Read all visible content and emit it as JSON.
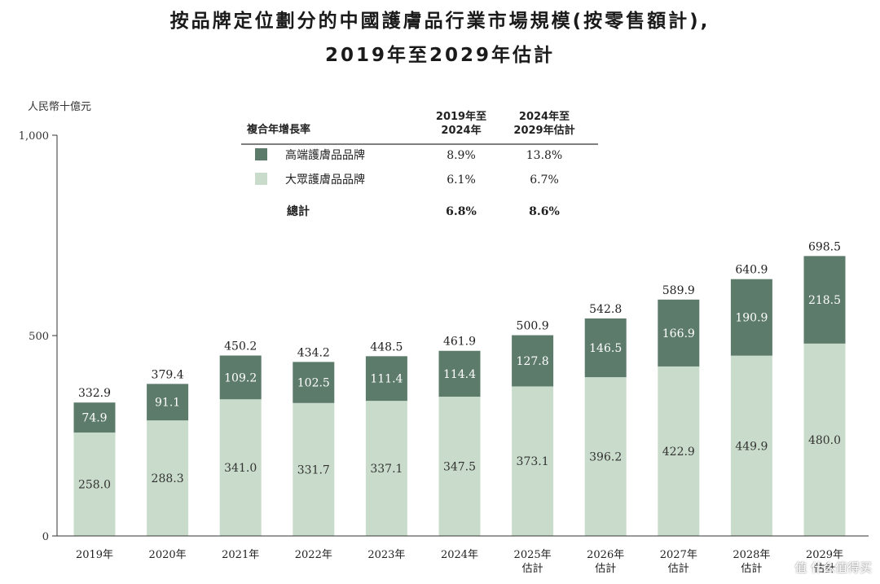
{
  "title_line1": "按品牌定位劃分的中國護膚品行業市場規模(按零售額計),",
  "title_line2": "2019年至2029年估計",
  "watermark": "值 什么值得买",
  "cagr_table": {
    "header_label": "複合年增長率",
    "col1_line1": "2019年至",
    "col1_line2": "2024年",
    "col2_line1": "2024年至",
    "col2_line2": "2029年估計",
    "rows": [
      {
        "label": "高端護膚品品牌",
        "v1": "8.9%",
        "v2": "13.8%"
      },
      {
        "label": "大眾護膚品品牌",
        "v1": "6.1%",
        "v2": "6.7%"
      },
      {
        "label": "總計",
        "v1": "6.8%",
        "v2": "8.6%"
      }
    ]
  },
  "chart_data": {
    "type": "bar",
    "stacked": true,
    "ylabel": "人民幣十億元",
    "ylim": [
      0,
      1000
    ],
    "yticks": [
      {
        "value": 0,
        "label": "0"
      },
      {
        "value": 500,
        "label": "500"
      },
      {
        "value": 1000,
        "label": "1,000"
      }
    ],
    "categories": [
      [
        "2019年"
      ],
      [
        "2020年"
      ],
      [
        "2021年"
      ],
      [
        "2022年"
      ],
      [
        "2023年"
      ],
      [
        "2024年"
      ],
      [
        "2025年",
        "估計"
      ],
      [
        "2026年",
        "估計"
      ],
      [
        "2027年",
        "估計"
      ],
      [
        "2028年",
        "估計"
      ],
      [
        "2029年",
        "估計"
      ]
    ],
    "series": [
      {
        "name": "大眾護膚品品牌",
        "color": "#c9dccb",
        "label_color": "#333333",
        "values": [
          258.0,
          288.3,
          341.0,
          331.7,
          337.1,
          347.5,
          373.1,
          396.2,
          422.9,
          449.9,
          480.0
        ]
      },
      {
        "name": "高端護膚品品牌",
        "color": "#5d7b6b",
        "label_color": "#ffffff",
        "values": [
          74.9,
          91.1,
          109.2,
          102.5,
          111.4,
          114.4,
          127.8,
          146.5,
          166.9,
          190.9,
          218.5
        ]
      }
    ],
    "totals": [
      332.9,
      379.4,
      450.2,
      434.2,
      448.5,
      461.9,
      500.9,
      542.8,
      589.9,
      640.9,
      698.5
    ]
  }
}
